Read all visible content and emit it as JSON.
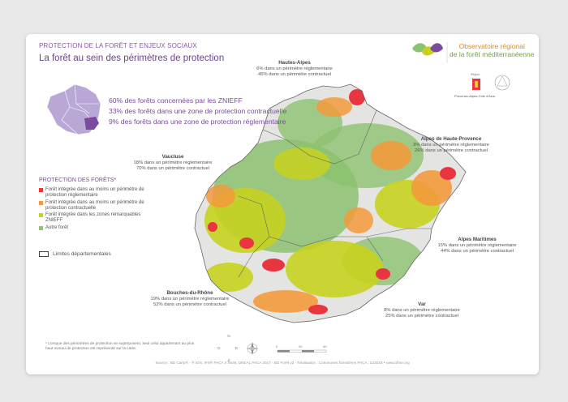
{
  "header": {
    "kicker": "PROTECTION DE LA FORÊT ET ENJEUX SOCIAUX",
    "title": "La forêt au sein des périmètres de protection"
  },
  "stats": [
    "60% des forêts concernées par les ZNIEFF",
    "33% des forêts dans une zone de protection contractuelle",
    "9% des forêts dans une zone de protection réglementaire"
  ],
  "regions": {
    "hautes_alpes": {
      "name": "Hautes-Alpes",
      "line1": "6% dans un périmètre réglementaire",
      "line2": "45% dans un périmètre contractuel"
    },
    "alpes_haute_provence": {
      "name": "Alpes de Haute-Provence",
      "line1": "3% dans un périmètre réglementaire",
      "line2": "26% dans un périmètre contractuel"
    },
    "vaucluse": {
      "name": "Vaucluse",
      "line1": "18% dans un périmètre réglementaire",
      "line2": "70% dans un périmètre contractuel"
    },
    "alpes_maritimes": {
      "name": "Alpes Maritimes",
      "line1": "15% dans un périmètre réglementaire",
      "line2": "44% dans un périmètre contractuel"
    },
    "bouches_du_rhone": {
      "name": "Bouches-du-Rhône",
      "line1": "19% dans un périmètre réglementaire",
      "line2": "52% dans un périmètre contractuel"
    },
    "var": {
      "name": "Var",
      "line1": "8% dans un périmètre réglementaire",
      "line2": "25% dans un périmètre contractuel"
    }
  },
  "legend": {
    "title": "PROTECTION DES FORÊTS*",
    "items": [
      {
        "label": "Forêt intégrée dans au moins un périmètre de protection réglementaire",
        "color": "#e8353f"
      },
      {
        "label": "Forêt intégrée dans au moins un périmètre de protection contractuelle",
        "color": "#f39a3c"
      },
      {
        "label": "Forêt intégrée dans les zones remarquables ZNIEFF",
        "color": "#c7d21f"
      },
      {
        "label": "Autre forêt",
        "color": "#8cc270"
      }
    ],
    "limits_label": "Limites départementales"
  },
  "compass": {
    "n": "N",
    "e": "E",
    "s": "S",
    "o": "O"
  },
  "scale": {
    "t0": "0",
    "t1": "20",
    "t2": "40"
  },
  "footnote": "* Lorsque des périmètres de protection se superposent, seul celui appartenant au plus haut niveau de protection est représenté sur la carte.",
  "source": "Source : BD Carto® - ® IGN, IFN® PACA n°9446, DREAL PACA 2017 - BD Forêt v2 - Réalisation : Communes forestières PACA, 11/2018 • www.ofme.org",
  "logo": {
    "line1": "Observatoire régional",
    "line2": "de la forêt méditerranéenne",
    "dept_label": "Région",
    "pref_label": "Provence-Alpes-Côte d'Azur"
  },
  "colors": {
    "regl": "#e8353f",
    "contract": "#f39a3c",
    "znieff": "#c7d21f",
    "other": "#8cc270",
    "france": "#b9a8d6",
    "accent": "#7a4a9e"
  }
}
